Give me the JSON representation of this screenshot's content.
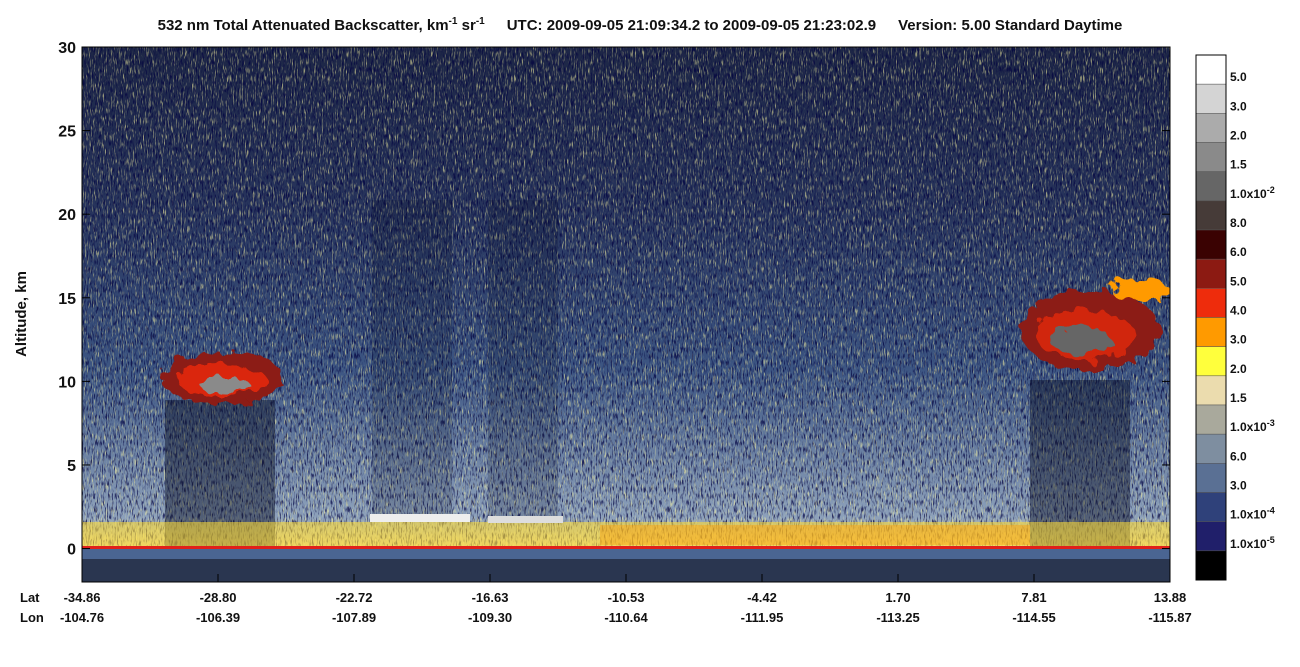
{
  "chart_data": {
    "type": "curtain",
    "title_parts": [
      "532 nm Total Attenuated Backscatter, km",
      "-1",
      " sr",
      "-1",
      "UTC:  2009-09-05 21:09:34.2  to  2009-09-05 21:23:02.9",
      "Version: 5.00  Standard  Daytime"
    ],
    "y_label": "Altitude, km",
    "ylim": [
      -2,
      30
    ],
    "yticks": [
      0,
      5,
      10,
      15,
      20,
      25,
      30
    ],
    "x_row_names": [
      "Lat",
      "Lon"
    ],
    "lat": [
      "-34.86",
      "-28.80",
      "-22.72",
      "-16.63",
      "-10.53",
      "-4.42",
      "1.70",
      "7.81",
      "13.88"
    ],
    "lon": [
      "-104.76",
      "-106.39",
      "-107.89",
      "-109.30",
      "-110.64",
      "-111.95",
      "-113.25",
      "-114.55",
      "-115.87"
    ],
    "colorbar": {
      "colors": [
        "#ffffff",
        "#d4d4d4",
        "#ababab",
        "#8a8a8a",
        "#666666",
        "#463b38",
        "#3a0202",
        "#8c1a12",
        "#ee2c0c",
        "#ff9a00",
        "#ffff3c",
        "#ebdcae",
        "#a9a99c",
        "#7e8ea0",
        "#5a7094",
        "#2f417a",
        "#201f6a",
        "#000000"
      ],
      "labels": [
        "5.0",
        "3.0",
        "2.0",
        "1.5",
        {
          "text": "1.0x10",
          "sup": "-2"
        },
        "8.0",
        "6.0",
        "5.0",
        "4.0",
        "3.0",
        "2.0",
        "1.5",
        {
          "text": "1.0x10",
          "sup": "-3"
        },
        "6.0",
        "3.0",
        {
          "text": "1.0x10",
          "sup": "-4"
        },
        {
          "text": "1.0x10",
          "sup": "-5"
        }
      ]
    }
  }
}
